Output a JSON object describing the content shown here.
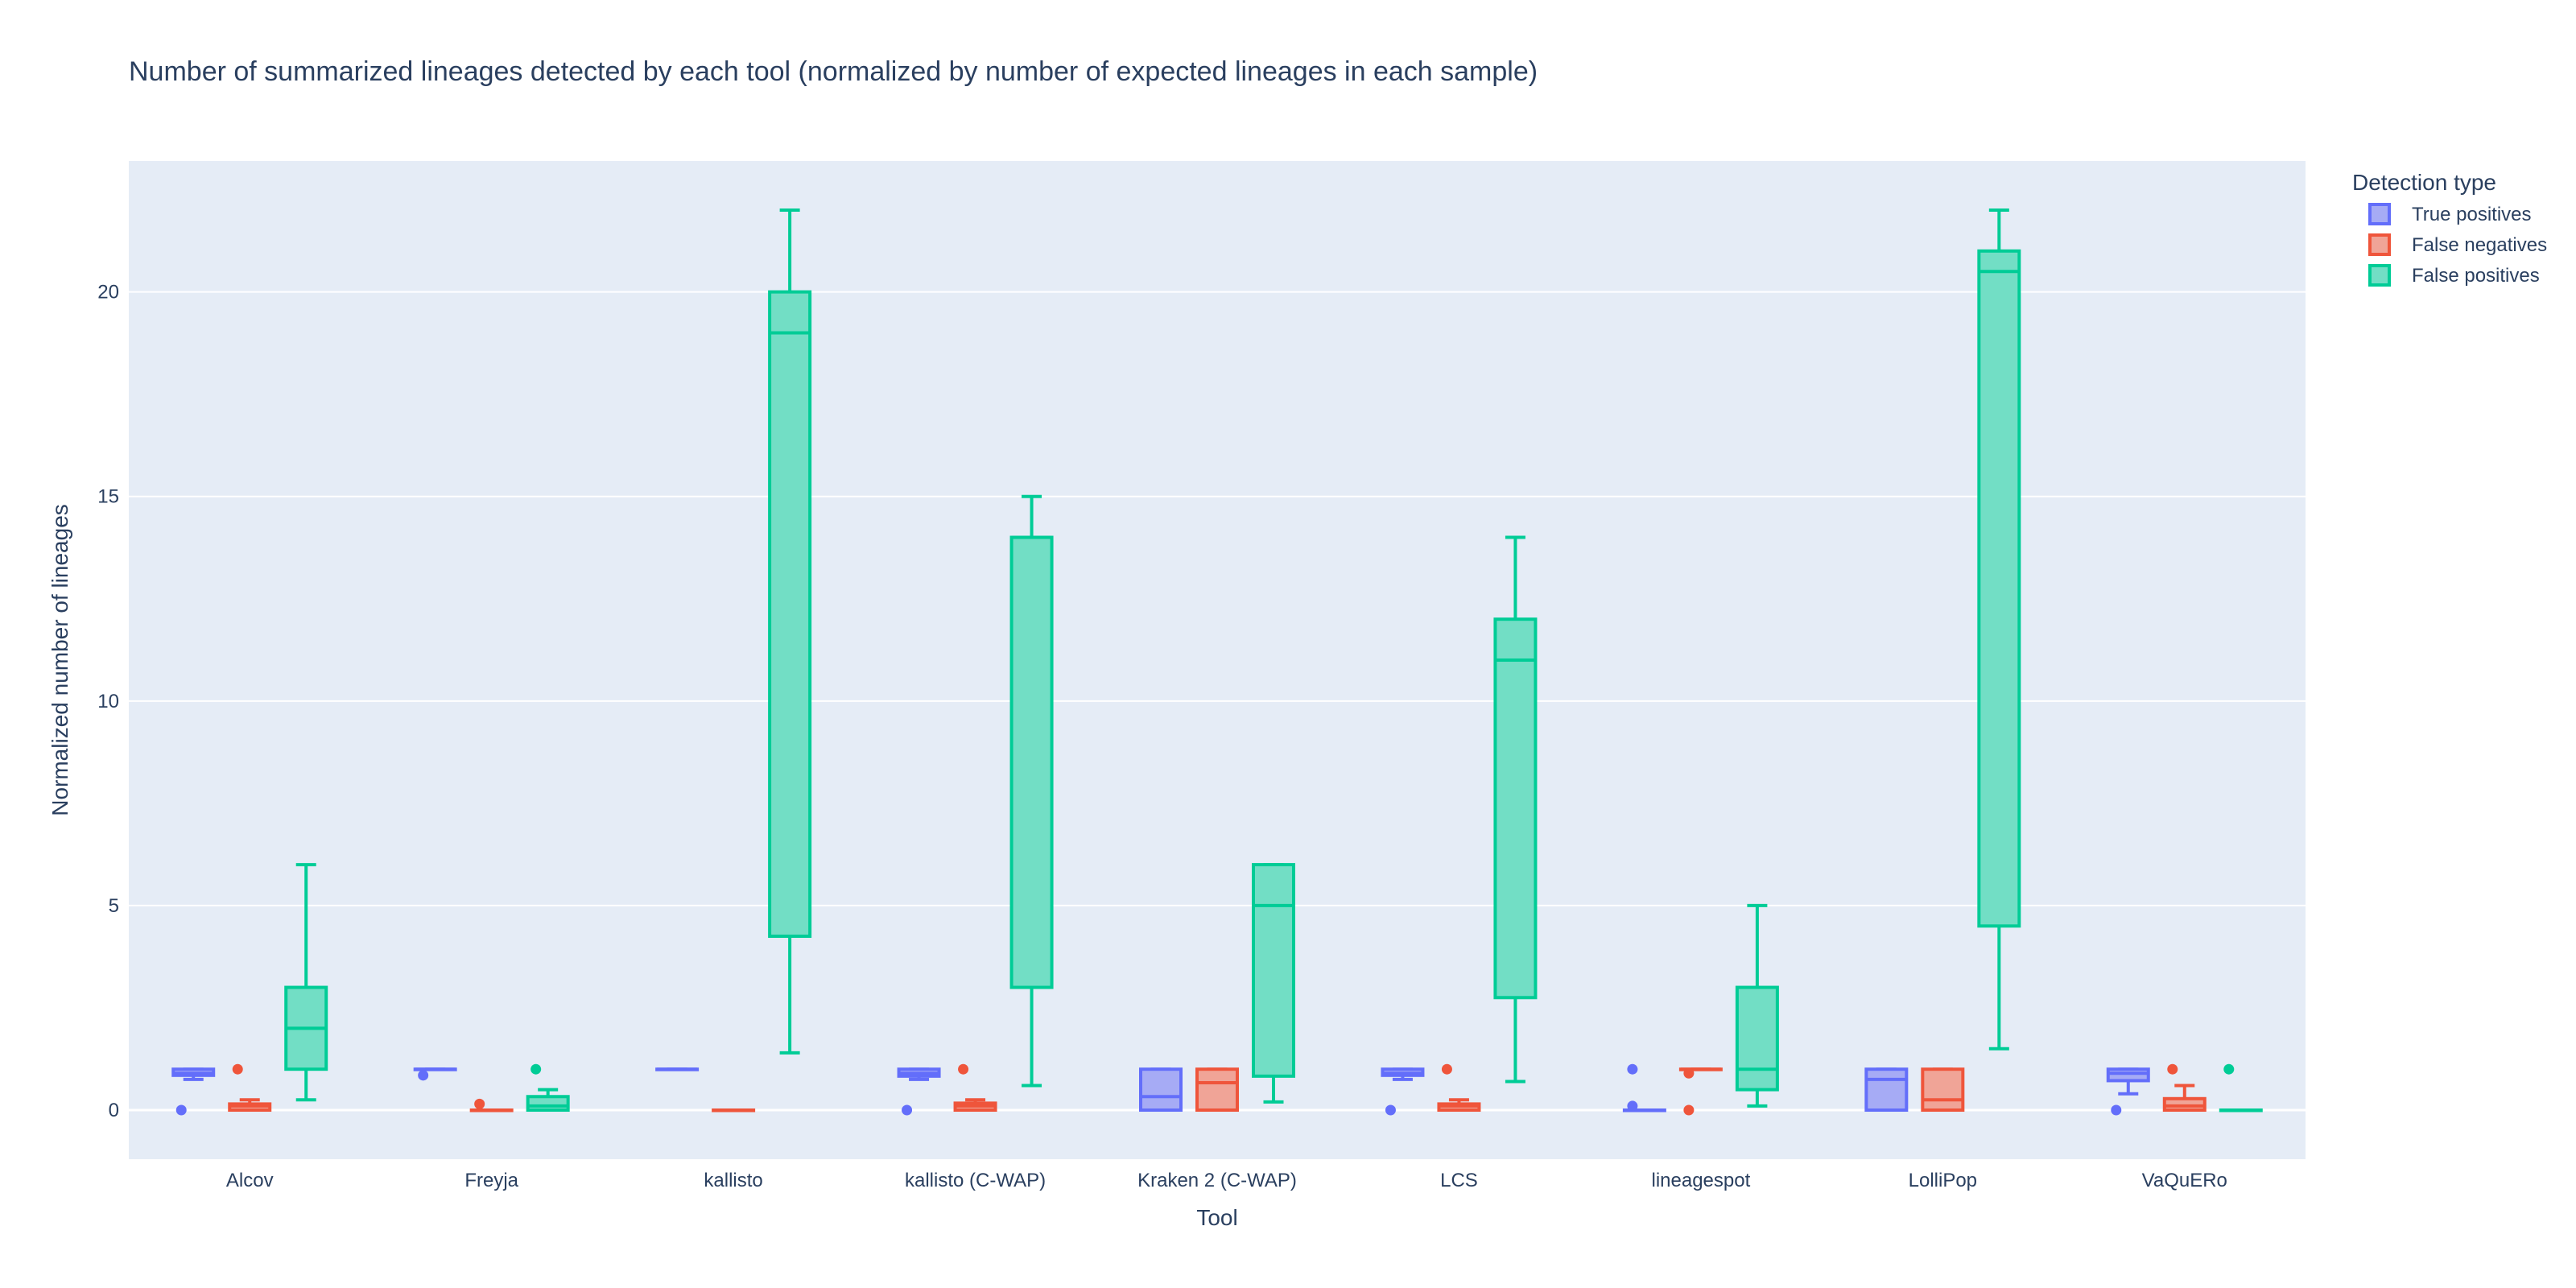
{
  "chart_data": {
    "type": "box",
    "title": "Number of summarized lineages detected by each tool (normalized by number of expected lineages in each sample)",
    "xlabel": "Tool",
    "ylabel": "Normalized number of lineages",
    "ylim": [
      -1.2,
      23.2
    ],
    "yticks": [
      0,
      5,
      10,
      15,
      20
    ],
    "grid": true,
    "legend_title": "Detection type",
    "legend_position": "top-right",
    "categories": [
      "Alcov",
      "Freyja",
      "kallisto",
      "kallisto (C-WAP)",
      "Kraken 2 (C-WAP)",
      "LCS",
      "lineagespot",
      "LolliPop",
      "VaQuERo"
    ],
    "series": [
      {
        "name": "True positives",
        "color": "#636efa",
        "fill": "#a6abf5",
        "boxes": [
          {
            "min": 0.75,
            "q1": 0.85,
            "median": 0.9,
            "q3": 1.0,
            "max": 1.0,
            "outliers": [
              0
            ]
          },
          {
            "min": 1.0,
            "q1": 1.0,
            "median": 1.0,
            "q3": 1.0,
            "max": 1.0,
            "outliers": [
              0.85
            ]
          },
          {
            "min": 1.0,
            "q1": 1.0,
            "median": 1.0,
            "q3": 1.0,
            "max": 1.0,
            "outliers": []
          },
          {
            "min": 0.75,
            "q1": 0.83,
            "median": 0.9,
            "q3": 1.0,
            "max": 1.0,
            "outliers": [
              0
            ]
          },
          {
            "min": 0,
            "q1": 0,
            "median": 0.33,
            "q3": 1.0,
            "max": 1.0,
            "outliers": []
          },
          {
            "min": 0.75,
            "q1": 0.85,
            "median": 0.9,
            "q3": 1.0,
            "max": 1.0,
            "outliers": [
              0
            ]
          },
          {
            "min": 0,
            "q1": 0,
            "median": 0,
            "q3": 0,
            "max": 0,
            "outliers": [
              1.0,
              0.1
            ]
          },
          {
            "min": 0,
            "q1": 0,
            "median": 0.75,
            "q3": 1.0,
            "max": 1.0,
            "outliers": []
          },
          {
            "min": 0.4,
            "q1": 0.72,
            "median": 0.9,
            "q3": 1.0,
            "max": 1.0,
            "outliers": [
              0
            ]
          }
        ]
      },
      {
        "name": "False negatives",
        "color": "#ef553b",
        "fill": "#f0a497",
        "boxes": [
          {
            "min": 0,
            "q1": 0,
            "median": 0.1,
            "q3": 0.15,
            "max": 0.25,
            "outliers": [
              1.0
            ]
          },
          {
            "min": 0,
            "q1": 0,
            "median": 0,
            "q3": 0,
            "max": 0,
            "outliers": [
              0.15
            ]
          },
          {
            "min": 0,
            "q1": 0,
            "median": 0,
            "q3": 0,
            "max": 0,
            "outliers": []
          },
          {
            "min": 0,
            "q1": 0,
            "median": 0.1,
            "q3": 0.17,
            "max": 0.25,
            "outliers": [
              1.0
            ]
          },
          {
            "min": 0,
            "q1": 0,
            "median": 0.67,
            "q3": 1.0,
            "max": 1.0,
            "outliers": []
          },
          {
            "min": 0,
            "q1": 0,
            "median": 0.1,
            "q3": 0.15,
            "max": 0.25,
            "outliers": [
              1.0
            ]
          },
          {
            "min": 1.0,
            "q1": 1.0,
            "median": 1.0,
            "q3": 1.0,
            "max": 1.0,
            "outliers": [
              0.9,
              0
            ]
          },
          {
            "min": 0,
            "q1": 0,
            "median": 0.25,
            "q3": 1.0,
            "max": 1.0,
            "outliers": []
          },
          {
            "min": 0,
            "q1": 0,
            "median": 0.1,
            "q3": 0.28,
            "max": 0.6,
            "outliers": [
              1.0
            ]
          }
        ]
      },
      {
        "name": "False positives",
        "color": "#00cc96",
        "fill": "#72dec5",
        "boxes": [
          {
            "min": 0.25,
            "q1": 1.0,
            "median": 2.0,
            "q3": 3.0,
            "max": 6.0,
            "outliers": []
          },
          {
            "min": 0,
            "q1": 0,
            "median": 0.1,
            "q3": 0.33,
            "max": 0.5,
            "outliers": [
              1.0
            ]
          },
          {
            "min": 1.4,
            "q1": 4.25,
            "median": 19.0,
            "q3": 20.0,
            "max": 22.0,
            "outliers": []
          },
          {
            "min": 0.6,
            "q1": 3.0,
            "median": 14.0,
            "q3": 14.0,
            "max": 15.0,
            "outliers": []
          },
          {
            "min": 0.2,
            "q1": 0.83,
            "median": 5.0,
            "q3": 6.0,
            "max": 6.0,
            "outliers": []
          },
          {
            "min": 0.7,
            "q1": 2.75,
            "median": 11.0,
            "q3": 12.0,
            "max": 14.0,
            "outliers": []
          },
          {
            "min": 0.1,
            "q1": 0.5,
            "median": 1.0,
            "q3": 3.0,
            "max": 5.0,
            "outliers": []
          },
          {
            "min": 1.5,
            "q1": 4.5,
            "median": 20.5,
            "q3": 21.0,
            "max": 22.0,
            "outliers": []
          },
          {
            "min": 0,
            "q1": 0,
            "median": 0,
            "q3": 0,
            "max": 0,
            "outliers": [
              1.0
            ]
          }
        ]
      }
    ]
  }
}
